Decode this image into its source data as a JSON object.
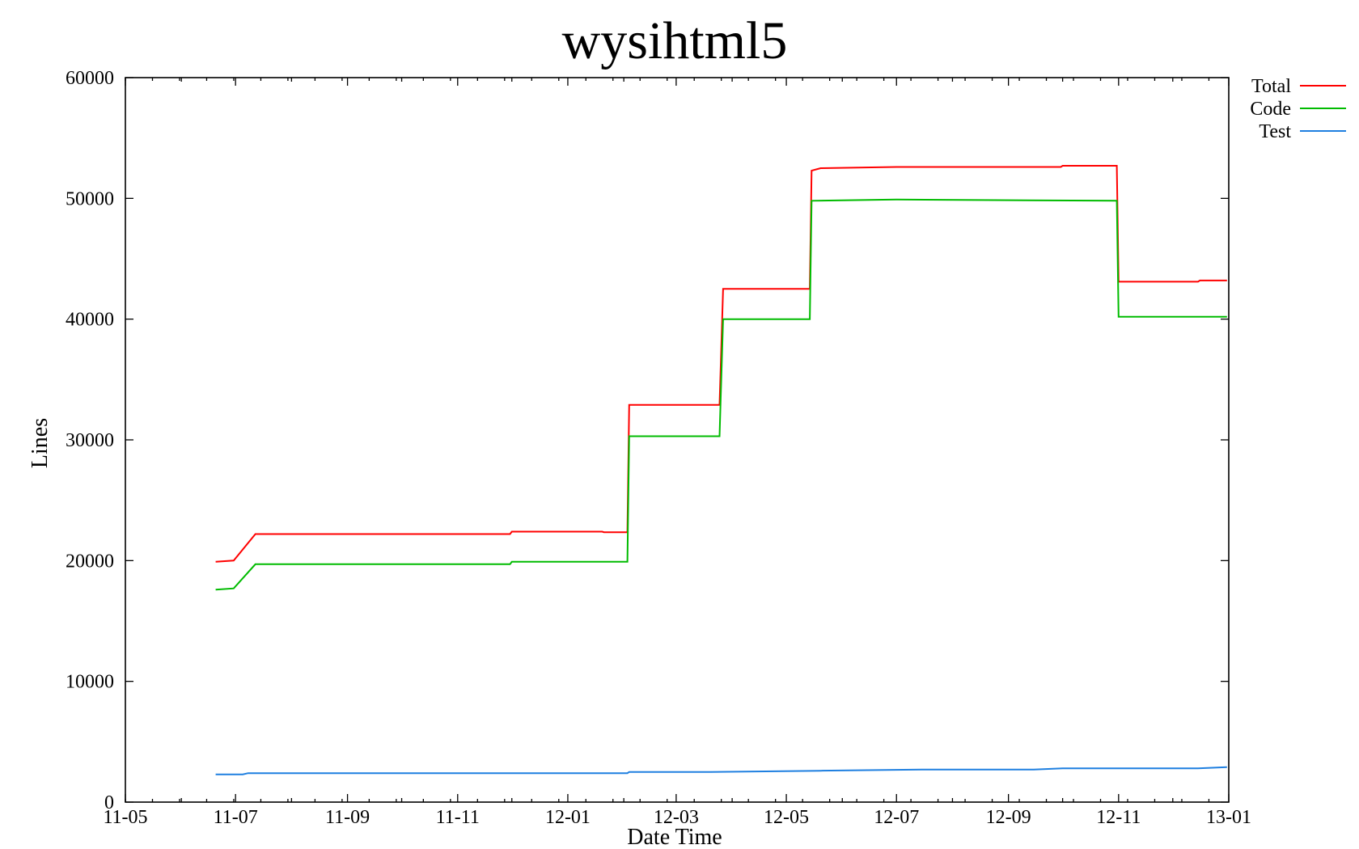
{
  "chart_data": {
    "type": "line",
    "title": "wysihtml5",
    "xlabel": "Date Time",
    "ylabel": "Lines",
    "ylim": [
      0,
      60000
    ],
    "xlim": [
      "2011-05-01",
      "2013-01-01"
    ],
    "yticks": [
      "0",
      "10000",
      "20000",
      "30000",
      "40000",
      "50000",
      "60000"
    ],
    "xticks": [
      {
        "date": "2011-05-01",
        "label": "11-05"
      },
      {
        "date": "2011-07-01",
        "label": "11-07"
      },
      {
        "date": "2011-09-01",
        "label": "11-09"
      },
      {
        "date": "2011-11-01",
        "label": "11-11"
      },
      {
        "date": "2012-01-01",
        "label": "12-01"
      },
      {
        "date": "2012-03-01",
        "label": "12-03"
      },
      {
        "date": "2012-05-01",
        "label": "12-05"
      },
      {
        "date": "2012-07-01",
        "label": "12-07"
      },
      {
        "date": "2012-09-01",
        "label": "12-09"
      },
      {
        "date": "2012-11-01",
        "label": "12-11"
      },
      {
        "date": "2013-01-01",
        "label": "13-01"
      }
    ],
    "grid": false,
    "legend_position": "right-top",
    "series": [
      {
        "name": "Total",
        "color": "#ff0000",
        "points": [
          [
            "2011-06-20",
            19900
          ],
          [
            "2011-06-30",
            20000
          ],
          [
            "2011-07-12",
            22200
          ],
          [
            "2011-11-30",
            22200
          ],
          [
            "2011-12-01",
            22400
          ],
          [
            "2012-01-20",
            22400
          ],
          [
            "2012-01-21",
            22350
          ],
          [
            "2012-02-03",
            22350
          ],
          [
            "2012-02-04",
            32900
          ],
          [
            "2012-03-25",
            32900
          ],
          [
            "2012-03-27",
            42500
          ],
          [
            "2012-04-15",
            42500
          ],
          [
            "2012-05-14",
            42500
          ],
          [
            "2012-05-15",
            52300
          ],
          [
            "2012-05-20",
            52500
          ],
          [
            "2012-07-01",
            52600
          ],
          [
            "2012-07-15",
            52600
          ],
          [
            "2012-09-30",
            52600
          ],
          [
            "2012-10-01",
            52700
          ],
          [
            "2012-10-31",
            52700
          ],
          [
            "2012-11-01",
            43100
          ],
          [
            "2012-12-15",
            43100
          ],
          [
            "2012-12-16",
            43200
          ],
          [
            "2012-12-31",
            43200
          ]
        ]
      },
      {
        "name": "Code",
        "color": "#00bb00",
        "points": [
          [
            "2011-06-20",
            17600
          ],
          [
            "2011-06-30",
            17700
          ],
          [
            "2011-07-12",
            19700
          ],
          [
            "2011-11-30",
            19700
          ],
          [
            "2011-12-01",
            19900
          ],
          [
            "2012-01-20",
            19900
          ],
          [
            "2012-02-03",
            19900
          ],
          [
            "2012-02-04",
            30300
          ],
          [
            "2012-03-25",
            30300
          ],
          [
            "2012-03-27",
            40000
          ],
          [
            "2012-05-14",
            40000
          ],
          [
            "2012-05-15",
            49800
          ],
          [
            "2012-07-01",
            49900
          ],
          [
            "2012-10-31",
            49800
          ],
          [
            "2012-11-01",
            40200
          ],
          [
            "2012-12-31",
            40200
          ]
        ]
      },
      {
        "name": "Test",
        "color": "#1e7fe0",
        "points": [
          [
            "2011-06-20",
            2300
          ],
          [
            "2011-07-05",
            2300
          ],
          [
            "2011-07-08",
            2400
          ],
          [
            "2012-02-03",
            2400
          ],
          [
            "2012-02-04",
            2500
          ],
          [
            "2012-03-20",
            2500
          ],
          [
            "2012-05-20",
            2600
          ],
          [
            "2012-07-15",
            2700
          ],
          [
            "2012-09-15",
            2700
          ],
          [
            "2012-10-01",
            2800
          ],
          [
            "2012-12-15",
            2800
          ],
          [
            "2012-12-31",
            2900
          ]
        ]
      }
    ]
  }
}
